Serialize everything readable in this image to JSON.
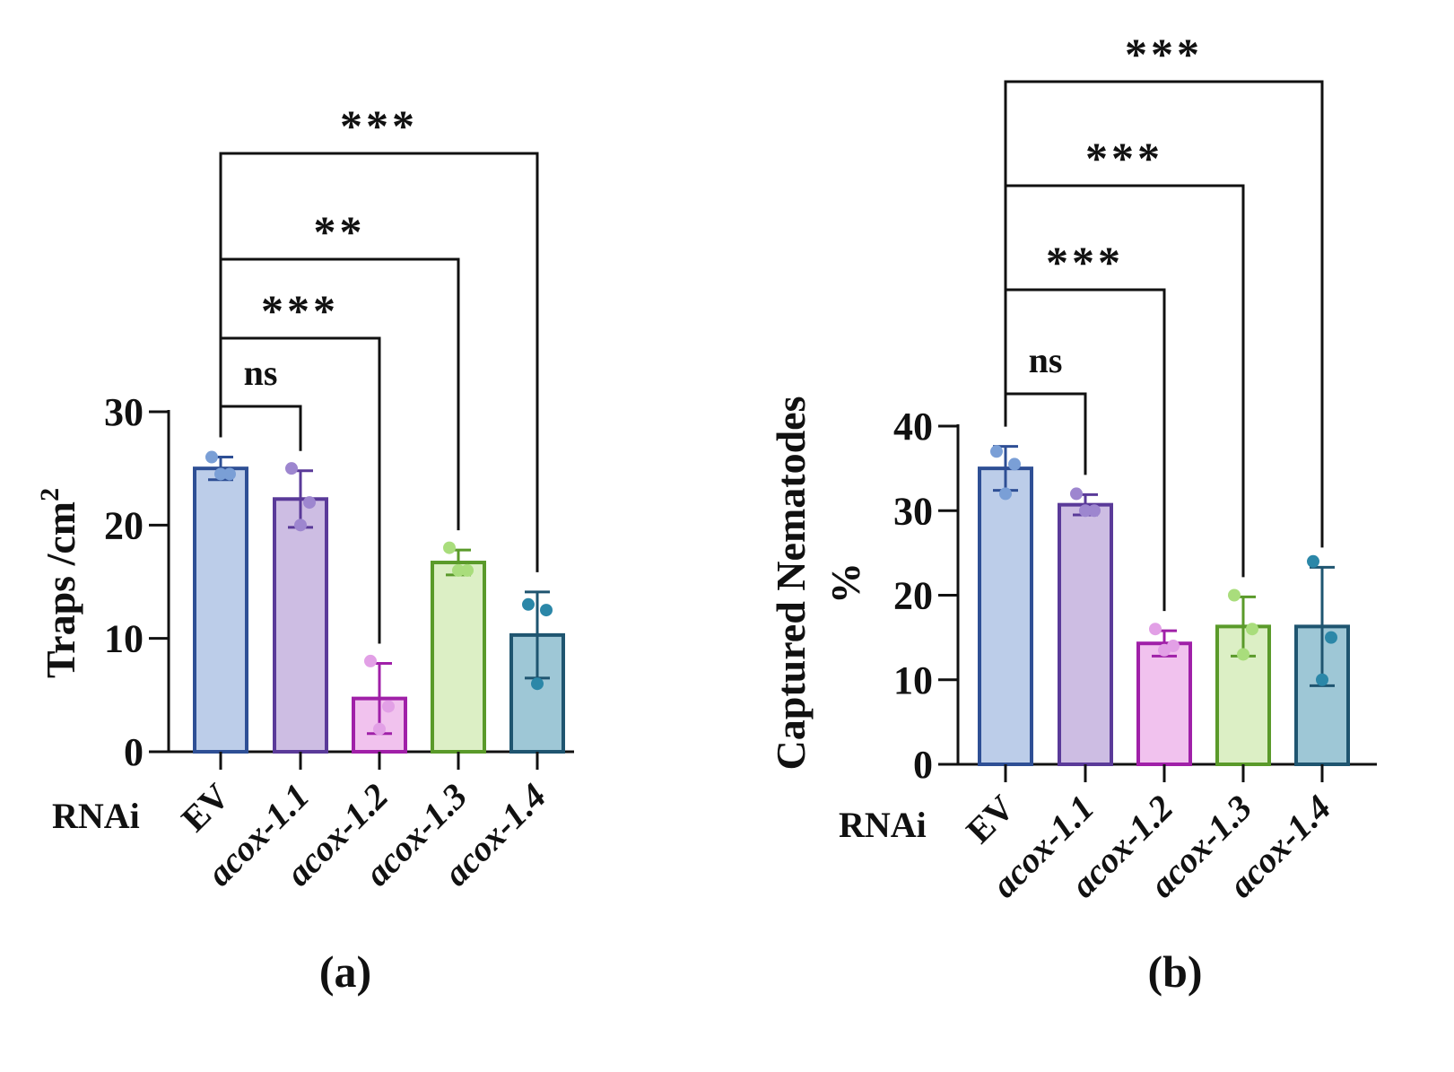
{
  "chart_data": [
    {
      "type": "bar",
      "panel_label": "(a)",
      "row_label": "RNAi",
      "ylabel_text": "Traps /cm",
      "ylabel_sup": "2",
      "ylim": [
        0,
        30
      ],
      "yticks": [
        "0",
        "10",
        "20",
        "30"
      ],
      "categories": [
        "EV",
        "acox-1.1",
        "acox-1.2",
        "acox-1.3",
        "acox-1.4"
      ],
      "category_italic": [
        false,
        true,
        true,
        true,
        true
      ],
      "values": [
        25.0,
        22.3,
        4.7,
        16.7,
        10.3
      ],
      "error": [
        1.0,
        2.5,
        3.1,
        1.1,
        3.8
      ],
      "points": [
        [
          26.0,
          24.5,
          24.5
        ],
        [
          25.0,
          22.0,
          20.0
        ],
        [
          8.0,
          4.0,
          2.0
        ],
        [
          18.0,
          16.0,
          16.0
        ],
        [
          13.0,
          12.5,
          6.0
        ]
      ],
      "fill_colors": [
        "#bccde9",
        "#cdbde3",
        "#f1c2ee",
        "#dcefc5",
        "#9ec7d6"
      ],
      "edge_colors": [
        "#2e4f95",
        "#5a3a99",
        "#a020a8",
        "#5a9a2a",
        "#1f5570"
      ],
      "point_colors": [
        "#7a9fd6",
        "#9d86cf",
        "#e2a0e6",
        "#a9dd7c",
        "#2b87a8"
      ],
      "comparisons": [
        {
          "from": 0,
          "to": 1,
          "label": "ns"
        },
        {
          "from": 0,
          "to": 2,
          "label": "***"
        },
        {
          "from": 0,
          "to": 3,
          "label": "**"
        },
        {
          "from": 0,
          "to": 4,
          "label": "***"
        }
      ]
    },
    {
      "type": "bar",
      "panel_label": "(b)",
      "row_label": "RNAi",
      "ylabel_text": "Captured Nematodes",
      "ylabel_line2": "%",
      "ylim": [
        0,
        40
      ],
      "yticks": [
        "0",
        "10",
        "20",
        "30",
        "40"
      ],
      "categories": [
        "EV",
        "acox-1.1",
        "acox-1.2",
        "acox-1.3",
        "acox-1.4"
      ],
      "category_italic": [
        false,
        true,
        true,
        true,
        true
      ],
      "values": [
        35.0,
        30.7,
        14.3,
        16.3,
        16.3
      ],
      "error": [
        2.6,
        1.2,
        1.5,
        3.5,
        7.0
      ],
      "points": [
        [
          37.0,
          35.5,
          32.0
        ],
        [
          32.0,
          30.0,
          30.0
        ],
        [
          16.0,
          14.0,
          13.5
        ],
        [
          20.0,
          16.0,
          13.0
        ],
        [
          24.0,
          15.0,
          10.0
        ]
      ],
      "fill_colors": [
        "#bccde9",
        "#cdbde3",
        "#f1c2ee",
        "#dcefc5",
        "#9ec7d6"
      ],
      "edge_colors": [
        "#2e4f95",
        "#5a3a99",
        "#a020a8",
        "#5a9a2a",
        "#1f5570"
      ],
      "point_colors": [
        "#7a9fd6",
        "#9d86cf",
        "#e2a0e6",
        "#a9dd7c",
        "#2b87a8"
      ],
      "comparisons": [
        {
          "from": 0,
          "to": 1,
          "label": "ns"
        },
        {
          "from": 0,
          "to": 2,
          "label": "***"
        },
        {
          "from": 0,
          "to": 3,
          "label": "***"
        },
        {
          "from": 0,
          "to": 4,
          "label": "***"
        }
      ]
    }
  ]
}
